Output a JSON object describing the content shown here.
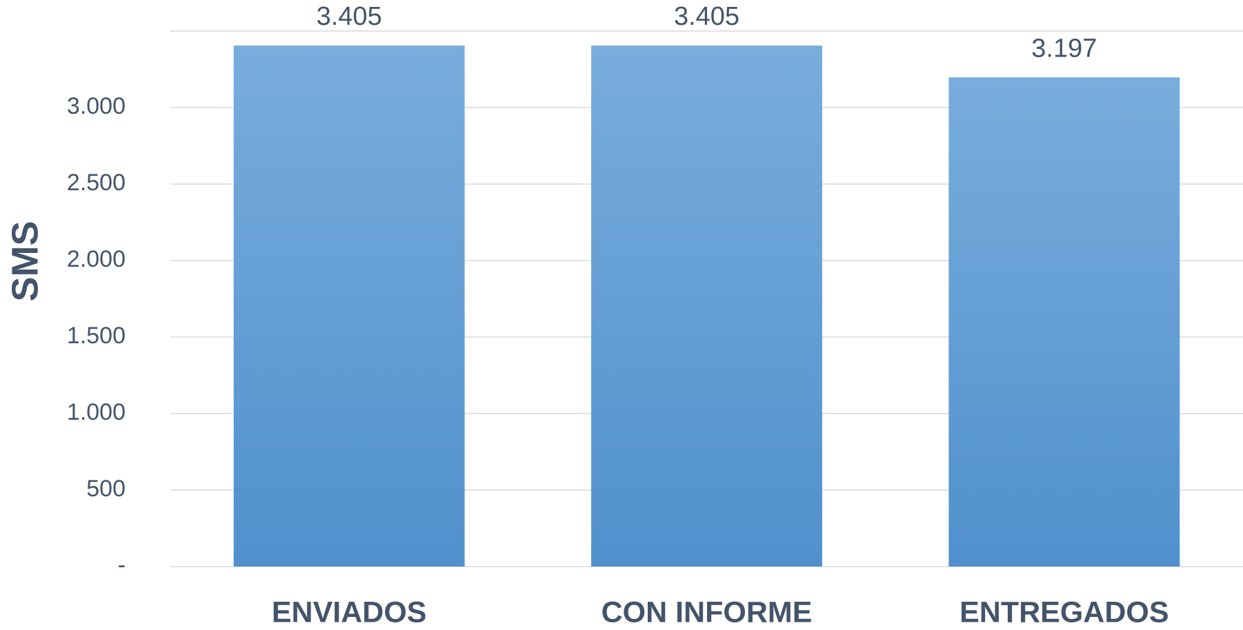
{
  "chart_data": {
    "type": "bar",
    "y_label": "SMS",
    "categories": [
      "ENVIADOS",
      "CON INFORME",
      "ENTREGADOS"
    ],
    "values": [
      3405,
      3405,
      3197
    ],
    "value_labels": [
      "3.405",
      "3.405",
      "3.197"
    ],
    "color": "#5b9bd5",
    "ylim": [
      0,
      3500
    ],
    "yticks": [
      {
        "value": 0,
        "label": "-"
      },
      500,
      {
        "value": 1000,
        "label": "1.000"
      },
      {
        "value": 1500,
        "label": "1.500"
      },
      {
        "value": 2000,
        "label": "2.000"
      },
      {
        "value": 2500,
        "label": "2.500"
      },
      {
        "value": 3000,
        "label": "3.000"
      }
    ],
    "grid": true
  }
}
